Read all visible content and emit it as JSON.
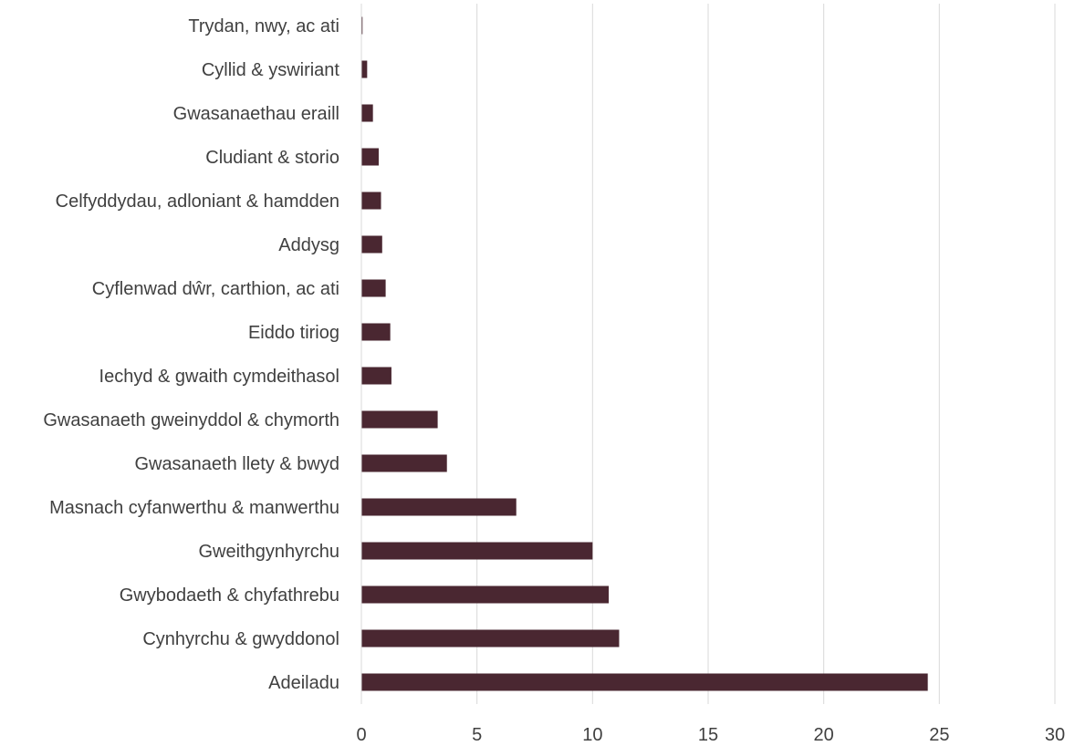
{
  "chart_data": {
    "type": "bar",
    "orientation": "horizontal",
    "title": "",
    "xlabel": "",
    "ylabel": "",
    "xlim": [
      0,
      30
    ],
    "x_ticks": [
      0,
      5,
      10,
      15,
      20,
      25,
      30
    ],
    "grid": "vertical",
    "legend": "none",
    "bar_color": "#4a2731",
    "grid_color": "#d9d9d9",
    "categories": [
      "Trydan, nwy, ac ati",
      "Cyllid & yswiriant",
      "Gwasanaethau eraill",
      "Cludiant & storio",
      "Celfyddydau, adloniant & hamdden",
      "Addysg",
      "Cyflenwad dŵr, carthion, ac ati",
      "Eiddo tiriog",
      "Iechyd & gwaith cymdeithasol",
      "Gwasanaeth gweinyddol & chymorth",
      "Gwasanaeth llety & bwyd",
      "Masnach cyfanwerthu & manwerthu",
      "Gweithgynhyrchu",
      "Gwybodaeth & chyfathrebu",
      "Cynhyrchu & gwyddonol",
      "Adeiladu"
    ],
    "values": [
      0.05,
      0.25,
      0.5,
      0.75,
      0.85,
      0.9,
      1.05,
      1.25,
      1.3,
      3.3,
      3.7,
      6.7,
      10.0,
      10.7,
      11.15,
      24.5
    ]
  }
}
